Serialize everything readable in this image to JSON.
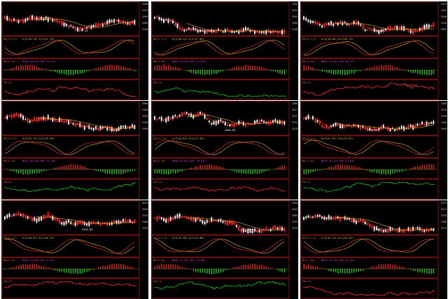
{
  "colors": {
    "background": "#000000",
    "frame": "#cc2222",
    "up_candle": "#ffffff",
    "down_candle": "#ff2020",
    "ma_red": "#ff3030",
    "ma_yellow": "#e0c040",
    "kdj_yellow": "#e0c040",
    "kdj_magenta": "#e040e0",
    "macd_up": "#e02020",
    "macd_down": "#20c020",
    "label_magenta": "#e040e0",
    "label_red": "#e06060",
    "label_orange": "#d08030",
    "axis_text": "#cfcfcf"
  },
  "panels": [
    {
      "low_label": "3117.44",
      "axis_price": [
        "3390",
        "3329",
        "3269",
        "3208",
        "3148"
      ],
      "ind1": {
        "name": "KD(9,3,3)",
        "values": "K(3)40.79%  D(3)41.33%"
      },
      "ind2": {
        "name": "MA(5,10)",
        "values": "MACD 16.84%  DIF 12.21%"
      },
      "ind3": {
        "name": "VOL(5)"
      }
    },
    {
      "low_label": "3019.04",
      "axis_price": [
        "3390",
        "3329",
        "3269",
        "3208",
        "3148"
      ],
      "ind1": {
        "name": "KD(9,3,3)",
        "values": "K(3)50.21%  D(3)47.09%"
      },
      "ind2": {
        "name": "MA(5,10)",
        "values": "MACD 14.95%  DIF 11.92%"
      },
      "ind3": {
        "name": "VOL(5)"
      }
    },
    {
      "low_label": "2981.59",
      "axis_price": [
        "3325",
        "3265",
        "3206",
        "3146",
        "3087"
      ],
      "ind1": {
        "name": "KD(9,3,3)",
        "values": "K(3)38.46%  D(3)40.11%"
      },
      "ind2": {
        "name": "MA(5,10)",
        "values": "MACD 13.61%  DIF 10.47%"
      },
      "ind3": {
        "name": "VOL(5)",
        "values": "4.389%"
      }
    },
    {
      "low_label": "3241.28",
      "axis_price": [
        "3560",
        "3490",
        "3420",
        "3350",
        "3280"
      ],
      "ind1": {
        "name": "KD(9,3,3)",
        "values": "K(3)42.17%  D(3)39.54%"
      },
      "ind2": {
        "name": "MA(5,10)",
        "values": "MACD 18.35%  DIF 15.28%"
      },
      "ind3": {
        "name": "VOL(5)"
      }
    },
    {
      "low_label": "3082.89",
      "axis_price": [
        "3386",
        "3321",
        "3257",
        "3192",
        "3128"
      ],
      "ind1": {
        "name": "KD(9,3,3)",
        "values": "K(3)44.83%  D(3)47.26%"
      },
      "ind2": {
        "name": "MA(5,10)",
        "values": "MACD 12.67%  DIF 10.13%"
      },
      "ind3": {
        "name": "VOL(5)"
      }
    },
    {
      "low_label": "2965.83",
      "axis_price": [
        "3280",
        "3220",
        "3160",
        "3100",
        "3040"
      ],
      "ind1": {
        "name": "KD(9,3,3)",
        "values": "K(3)41.35%  D(3)43.87%"
      },
      "ind2": {
        "name": "MA(5,10)",
        "values": "MACD 15.12%  DIF 12.03%"
      },
      "ind3": {
        "name": "VOL(5)"
      }
    },
    {
      "low_label": "3316.89",
      "axis_price": [
        "3610",
        "3540",
        "3470",
        "3400",
        "3330"
      ],
      "ind1": {
        "name": "KD(9,3,3)",
        "values": "K(3)48.92%  D(3)46.31%"
      },
      "ind2": {
        "name": "MA(5,10)",
        "values": "MACD 11.86%  DIF 9.47%"
      },
      "ind3": {
        "name": "VOL(5)"
      }
    },
    {
      "low_label": "3177.95",
      "axis_price": [
        "3490",
        "3425",
        "3360",
        "3295",
        "3230"
      ],
      "ind1": {
        "name": "KD(9,3,3)",
        "values": "K(3)45.10%  D(3)43.08%"
      },
      "ind2": {
        "name": "MA(5,10)",
        "values": "MACD 17.25%  DIF 13.66%"
      },
      "ind3": {
        "name": "VOL(5)"
      }
    },
    {
      "low_label": "3072.12",
      "axis_price": [
        "3375",
        "3312",
        "3249",
        "3186",
        "3123"
      ],
      "ind1": {
        "name": "KD(9,3,3)",
        "values": "K(3)46.72%  D(3)44.55%"
      },
      "ind2": {
        "name": "MA(5,10)",
        "values": "MACD 14.38%  DIF 11.52%"
      },
      "ind3": {
        "name": "VOL(5)"
      }
    }
  ]
}
